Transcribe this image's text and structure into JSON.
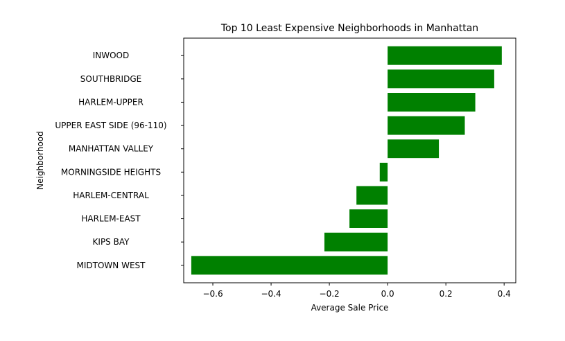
{
  "chart_data": {
    "type": "bar",
    "orientation": "horizontal",
    "title": "Top 10 Least Expensive Neighborhoods in Manhattan",
    "xlabel": "Average Sale Price",
    "ylabel": "Neighborhood",
    "categories": [
      "INWOOD",
      "SOUTHBRIDGE",
      "HARLEM-UPPER",
      "UPPER EAST SIDE (96-110)",
      "MANHATTAN VALLEY",
      "MORNINGSIDE HEIGHTS",
      "HARLEM-CENTRAL",
      "HARLEM-EAST",
      "KIPS BAY",
      "MIDTOWN WEST"
    ],
    "values": [
      0.392,
      0.366,
      0.301,
      0.265,
      0.176,
      -0.027,
      -0.107,
      -0.131,
      -0.217,
      -0.674
    ],
    "xlim": [
      -0.7,
      0.44
    ],
    "xticks": [
      -0.6,
      -0.4,
      -0.2,
      0.0,
      0.2,
      0.4
    ],
    "xtick_labels": [
      "−0.6",
      "−0.4",
      "−0.2",
      "0.0",
      "0.2",
      "0.4"
    ],
    "bar_color": "#008000",
    "grid": false,
    "legend": "none"
  }
}
